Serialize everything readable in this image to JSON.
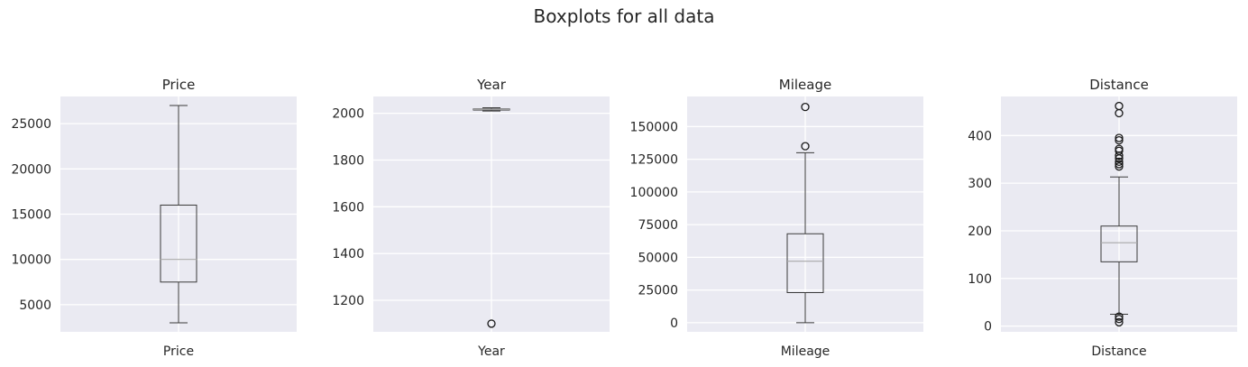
{
  "figure_title": "Boxplots for all data",
  "chart_data": [
    {
      "type": "boxplot",
      "title": "Price",
      "xtick": "Price",
      "ylim": [
        2000,
        28000
      ],
      "yticks": [
        5000,
        10000,
        15000,
        20000,
        25000
      ],
      "box": {
        "whisker_low": 3000,
        "q1": 7500,
        "median": 10000,
        "q3": 16000,
        "whisker_high": 27000
      },
      "outliers": []
    },
    {
      "type": "boxplot",
      "title": "Year",
      "xtick": "Year",
      "ylim": [
        1065,
        2072
      ],
      "yticks": [
        1200,
        1400,
        1600,
        1800,
        2000
      ],
      "box": {
        "whisker_low": 2010,
        "q1": 2014,
        "median": 2017,
        "q3": 2019,
        "whisker_high": 2024
      },
      "outliers": [
        1100
      ]
    },
    {
      "type": "boxplot",
      "title": "Mileage",
      "xtick": "Mileage",
      "ylim": [
        -7000,
        173000
      ],
      "yticks": [
        0,
        25000,
        50000,
        75000,
        100000,
        125000,
        150000
      ],
      "box": {
        "whisker_low": 0,
        "q1": 23000,
        "median": 47000,
        "q3": 68000,
        "whisker_high": 130000
      },
      "outliers": [
        135000,
        165000
      ]
    },
    {
      "type": "boxplot",
      "title": "Distance",
      "xtick": "Distance",
      "ylim": [
        -12,
        482
      ],
      "yticks": [
        0,
        100,
        200,
        300,
        400
      ],
      "box": {
        "whisker_low": 25,
        "q1": 135,
        "median": 175,
        "q3": 210,
        "whisker_high": 313
      },
      "outliers": [
        462,
        447,
        395,
        390,
        372,
        368,
        358,
        352,
        345,
        340,
        335,
        20,
        15,
        8
      ]
    }
  ]
}
